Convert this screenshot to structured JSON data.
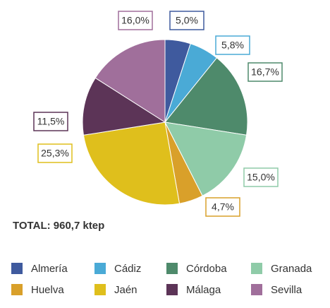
{
  "chart_data": {
    "type": "pie",
    "categories": [
      "Almería",
      "Cádiz",
      "Córdoba",
      "Granada",
      "Huelva",
      "Jaén",
      "Málaga",
      "Sevilla"
    ],
    "values": [
      5.0,
      5.8,
      16.7,
      15.0,
      4.7,
      25.3,
      11.5,
      16.0
    ],
    "value_labels": [
      "5,0%",
      "5,8%",
      "16,7%",
      "15,0%",
      "4,7%",
      "25,3%",
      "11,5%",
      "16,0%"
    ],
    "colors": [
      "#3f5a9e",
      "#4aaad6",
      "#4e8a6b",
      "#8fcba8",
      "#d9a02a",
      "#dfbf1c",
      "#5c3457",
      "#a06f9b"
    ],
    "annotation": "TOTAL: 960,7 ktep"
  }
}
